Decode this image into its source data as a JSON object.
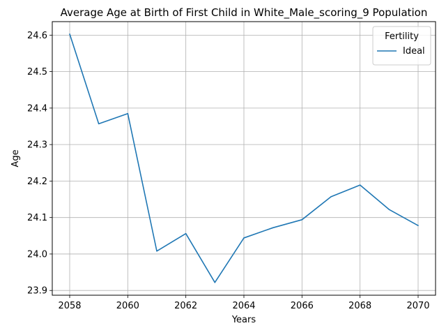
{
  "chart_data": {
    "type": "line",
    "title": "Average Age at Birth of First Child in White_Male_scoring_9 Population",
    "xlabel": "Years",
    "ylabel": "Age",
    "x": [
      2058,
      2059,
      2060,
      2061,
      2062,
      2063,
      2064,
      2065,
      2066,
      2067,
      2068,
      2069,
      2070
    ],
    "series": [
      {
        "name": "Ideal",
        "color": "#1f77b4",
        "values": [
          24.603,
          24.357,
          24.385,
          24.008,
          24.056,
          23.922,
          24.044,
          24.072,
          24.094,
          24.157,
          24.189,
          24.122,
          24.078
        ]
      }
    ],
    "xlim": [
      2057.4,
      2070.6
    ],
    "ylim": [
      23.887,
      24.637
    ],
    "xticks": [
      2058,
      2060,
      2062,
      2064,
      2066,
      2068,
      2070
    ],
    "yticks": [
      23.9,
      24.0,
      24.1,
      24.2,
      24.3,
      24.4,
      24.5,
      24.6
    ],
    "grid": true,
    "legend": {
      "title": "Fertility",
      "placement": "top-right"
    }
  }
}
